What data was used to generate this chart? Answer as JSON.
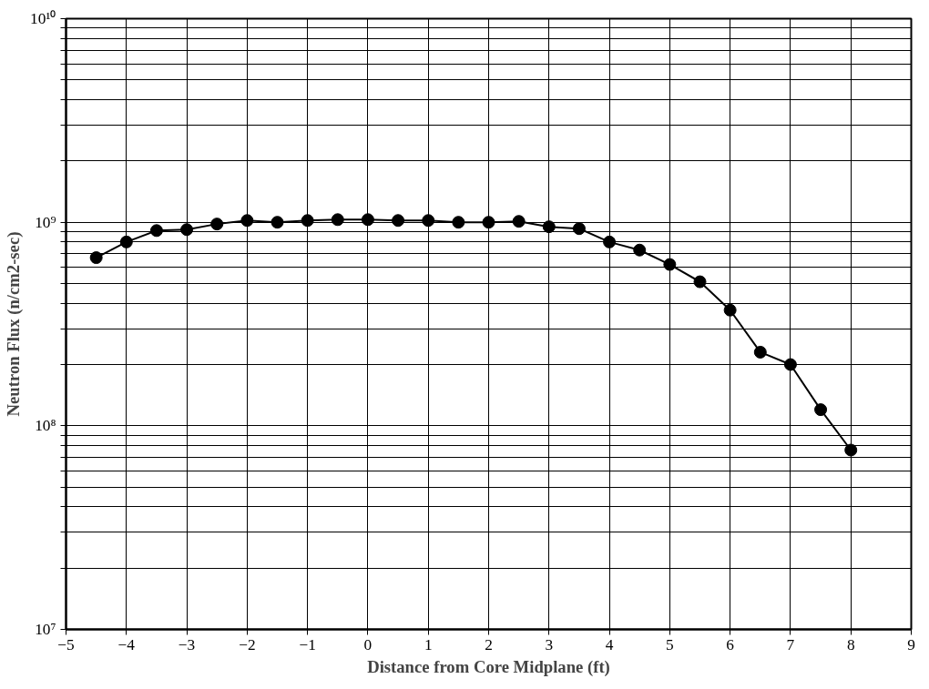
{
  "chart_data": {
    "type": "line",
    "xlabel": "Distance from Core Midplane (ft)",
    "ylabel": "Neutron Flux (n/cm2-sec)",
    "x": [
      -4.5,
      -4,
      -3.5,
      -3,
      -2.5,
      -2,
      -1.5,
      -1,
      -0.5,
      0,
      0.5,
      1,
      1.5,
      2,
      2.5,
      3,
      3.5,
      4,
      4.5,
      5,
      5.5,
      6,
      6.5,
      7,
      7.5,
      8
    ],
    "series": [
      {
        "color": "#000000",
        "values": [
          670000000.0,
          800000000.0,
          910000000.0,
          920000000.0,
          980000000.0,
          1020000000.0,
          1000000000.0,
          1020000000.0,
          1030000000.0,
          1030000000.0,
          1020000000.0,
          1020000000.0,
          1000000000.0,
          1000000000.0,
          1010000000.0,
          950000000.0,
          930000000.0,
          800000000.0,
          730000000.0,
          620000000.0,
          510000000.0,
          370000000.0,
          230000000.0,
          200000000.0,
          120000000.0,
          76000000.0
        ]
      }
    ],
    "xlim": [
      -5,
      9
    ],
    "xticks": [
      -5,
      -4,
      -3,
      -2,
      -1,
      0,
      1,
      2,
      3,
      4,
      5,
      6,
      7,
      8,
      9
    ],
    "ylim": [
      10000000.0,
      10000000000.0
    ],
    "log": "y",
    "yticks": [
      {
        "value": 10000000.0,
        "label": "10⁷"
      },
      {
        "value": 20000000.0,
        "label": null
      },
      {
        "value": 30000000.0,
        "label": null
      },
      {
        "value": 40000000.0,
        "label": null
      },
      {
        "value": 50000000.0,
        "label": null
      },
      {
        "value": 60000000.0,
        "label": null
      },
      {
        "value": 70000000.0,
        "label": null
      },
      {
        "value": 80000000.0,
        "label": null
      },
      {
        "value": 90000000.0,
        "label": null
      },
      {
        "value": 100000000.0,
        "label": "10⁸"
      },
      {
        "value": 200000000.0,
        "label": null
      },
      {
        "value": 300000000.0,
        "label": null
      },
      {
        "value": 400000000.0,
        "label": null
      },
      {
        "value": 500000000.0,
        "label": null
      },
      {
        "value": 600000000.0,
        "label": null
      },
      {
        "value": 700000000.0,
        "label": null
      },
      {
        "value": 800000000.0,
        "label": null
      },
      {
        "value": 900000000.0,
        "label": null
      },
      {
        "value": 1000000000.0,
        "label": "10⁹"
      },
      {
        "value": 2000000000.0,
        "label": null
      },
      {
        "value": 3000000000.0,
        "label": null
      },
      {
        "value": 4000000000.0,
        "label": null
      },
      {
        "value": 5000000000.0,
        "label": null
      },
      {
        "value": 6000000000.0,
        "label": null
      },
      {
        "value": 7000000000.0,
        "label": null
      },
      {
        "value": 8000000000.0,
        "label": null
      },
      {
        "value": 9000000000.0,
        "label": null
      },
      {
        "value": 10000000000.0,
        "label": "10¹⁰"
      }
    ],
    "grid": true,
    "marker": "circle",
    "line_style": "solid"
  }
}
